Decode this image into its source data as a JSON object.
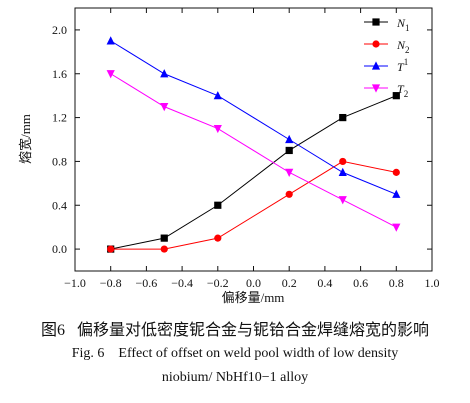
{
  "chart_data": {
    "type": "line",
    "xlabel": "偏移量/mm",
    "ylabel": "熔宽/mm",
    "xlim": [
      -1.0,
      1.0
    ],
    "ylim": [
      -0.2,
      2.2
    ],
    "xticks": [
      "−1.0",
      "−0.8",
      "−0.6",
      "−0.4",
      "−0.2",
      "0.0",
      "0.2",
      "0.4",
      "0.6",
      "0.8",
      "1.0"
    ],
    "xtick_values": [
      -1.0,
      -0.8,
      -0.6,
      -0.4,
      -0.2,
      0.0,
      0.2,
      0.4,
      0.6,
      0.8,
      1.0
    ],
    "yticks": [
      "0.0",
      "0.4",
      "0.8",
      "1.2",
      "1.6",
      "2.0"
    ],
    "ytick_values": [
      0.0,
      0.4,
      0.8,
      1.2,
      1.6,
      2.0
    ],
    "x": [
      -0.8,
      -0.5,
      -0.2,
      0.2,
      0.5,
      0.8
    ],
    "legend_position": "top-right",
    "series": [
      {
        "name": "N",
        "sub": "1",
        "sub_pos": "below",
        "color": "#000000",
        "marker": "square",
        "values": [
          0.0,
          0.1,
          0.4,
          0.9,
          1.2,
          1.4
        ]
      },
      {
        "name": "N",
        "sub": "2",
        "sub_pos": "below",
        "color": "#ff0000",
        "marker": "circle",
        "values": [
          0.0,
          0.0,
          0.1,
          0.5,
          0.8,
          0.7
        ]
      },
      {
        "name": "T",
        "sub": "1",
        "sub_pos": "above",
        "color": "#0000ff",
        "marker": "triangle-up",
        "values": [
          1.9,
          1.6,
          1.4,
          1.0,
          0.7,
          0.5
        ]
      },
      {
        "name": "T",
        "sub": "2",
        "sub_pos": "below",
        "color": "#ff00ff",
        "marker": "triangle-down",
        "values": [
          1.6,
          1.3,
          1.1,
          0.7,
          0.45,
          0.2
        ]
      }
    ]
  },
  "caption": {
    "zh_number": "图6",
    "zh_text": "偏移量对低密度铌合金与铌铪合金焊缝熔宽的影响",
    "en_line1": "Fig. 6    Effect of offset on weld pool width of low density",
    "en_line2": "niobium/ NbHf10−1 alloy"
  }
}
